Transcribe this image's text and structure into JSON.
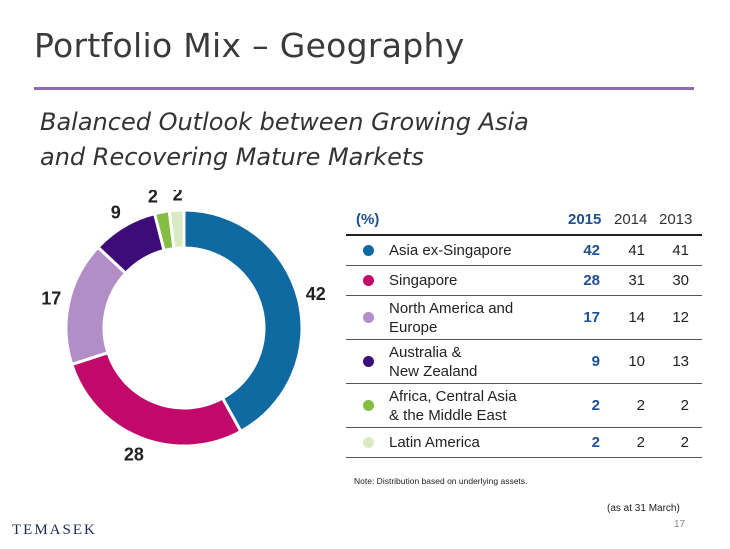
{
  "header": {
    "title": "Portfolio Mix – Geography",
    "subtitle_line1": "Balanced Outlook between Growing Asia",
    "subtitle_line2": "and Recovering Mature Markets"
  },
  "chart_data": {
    "type": "pie",
    "variant": "donut",
    "categories": [
      "Asia ex-Singapore",
      "Singapore",
      "North America and Europe",
      "Australia & New Zealand",
      "Africa, Central Asia & the Middle East",
      "Latin America"
    ],
    "values": [
      42,
      28,
      17,
      9,
      2,
      2
    ],
    "colors": [
      "#0e6aa0",
      "#c0096a",
      "#b28ec6",
      "#3d0c79",
      "#84bd41",
      "#d9ebc4"
    ],
    "unit": "%"
  },
  "table": {
    "header_unit": "(%)",
    "years": [
      "2015",
      "2014",
      "2013"
    ],
    "rows": [
      {
        "name_lines": [
          "Asia ex-Singapore"
        ],
        "color": "#0e6aa0",
        "values": [
          "42",
          "41",
          "41"
        ]
      },
      {
        "name_lines": [
          "Singapore"
        ],
        "color": "#c0096a",
        "values": [
          "28",
          "31",
          "30"
        ]
      },
      {
        "name_lines": [
          "North America and",
          "Europe"
        ],
        "color": "#b28ec6",
        "values": [
          "17",
          "14",
          "12"
        ]
      },
      {
        "name_lines": [
          "Australia &",
          "New Zealand"
        ],
        "color": "#3d0c79",
        "values": [
          "9",
          "10",
          "13"
        ]
      },
      {
        "name_lines": [
          "Africa, Central Asia",
          "& the Middle East"
        ],
        "color": "#84bd41",
        "values": [
          "2",
          "2",
          "2"
        ]
      },
      {
        "name_lines": [
          "Latin America"
        ],
        "color": "#d9ebc4",
        "values": [
          "2",
          "2",
          "2"
        ]
      }
    ]
  },
  "footer": {
    "note": "Note: Distribution based on underlying assets.",
    "as_at": "(as at 31 March)",
    "page_number": "17",
    "logo_text": "TEMASEK"
  }
}
